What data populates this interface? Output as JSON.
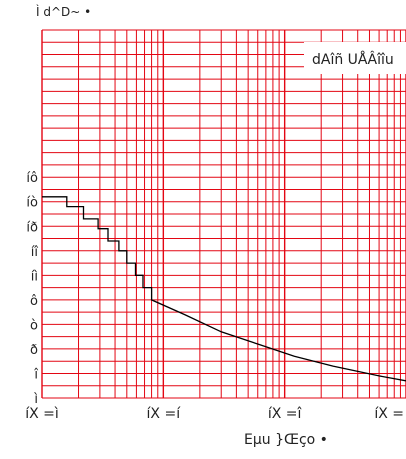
{
  "chart_data": {
    "type": "line",
    "title": "",
    "ylabel": "Ì d^D~ •",
    "xlabel": "Eµu }Œçο •",
    "legend": {
      "text": "dAîñ UÅÂîîu",
      "placement": "top-right"
    },
    "x_scale": "log",
    "xlim": [
      1,
      1000
    ],
    "ylim": [
      1,
      16
    ],
    "x_ticks": [
      {
        "value": 1,
        "label": "íX =ì"
      },
      {
        "value": 10,
        "label": "íX =í"
      },
      {
        "value": 100,
        "label": "íX =î"
      },
      {
        "value": 1000,
        "label": "íX ="
      }
    ],
    "y_ticks": [
      {
        "value": 1,
        "label": "ì"
      },
      {
        "value": 2,
        "label": "î"
      },
      {
        "value": 3,
        "label": "ð"
      },
      {
        "value": 4,
        "label": "ò"
      },
      {
        "value": 5,
        "label": "ô"
      },
      {
        "value": 6,
        "label": "íì"
      },
      {
        "value": 7,
        "label": "íî"
      },
      {
        "value": 8,
        "label": "íð"
      },
      {
        "value": 9,
        "label": "íò"
      },
      {
        "value": 10,
        "label": "íô"
      }
    ],
    "grid": true,
    "colors": {
      "grid": "#e30613",
      "series": "#000000",
      "text": "#222222"
    },
    "series": [
      {
        "x": [
          1,
          1.6,
          1.6,
          2.2,
          2.2,
          2.9,
          2.9,
          3.5,
          3.5,
          4.3,
          4.3,
          5.0,
          5.0,
          5.9,
          5.9,
          6.8,
          6.8,
          8.0,
          8.0,
          15,
          30,
          60,
          120,
          250,
          600,
          1000
        ],
        "y": [
          9.2,
          9.2,
          8.8,
          8.8,
          8.3,
          8.3,
          7.9,
          7.9,
          7.4,
          7.4,
          7.0,
          7.0,
          6.5,
          6.5,
          6.0,
          6.0,
          5.5,
          5.5,
          5.0,
          4.4,
          3.7,
          3.2,
          2.7,
          2.3,
          1.9,
          1.7
        ]
      }
    ]
  }
}
